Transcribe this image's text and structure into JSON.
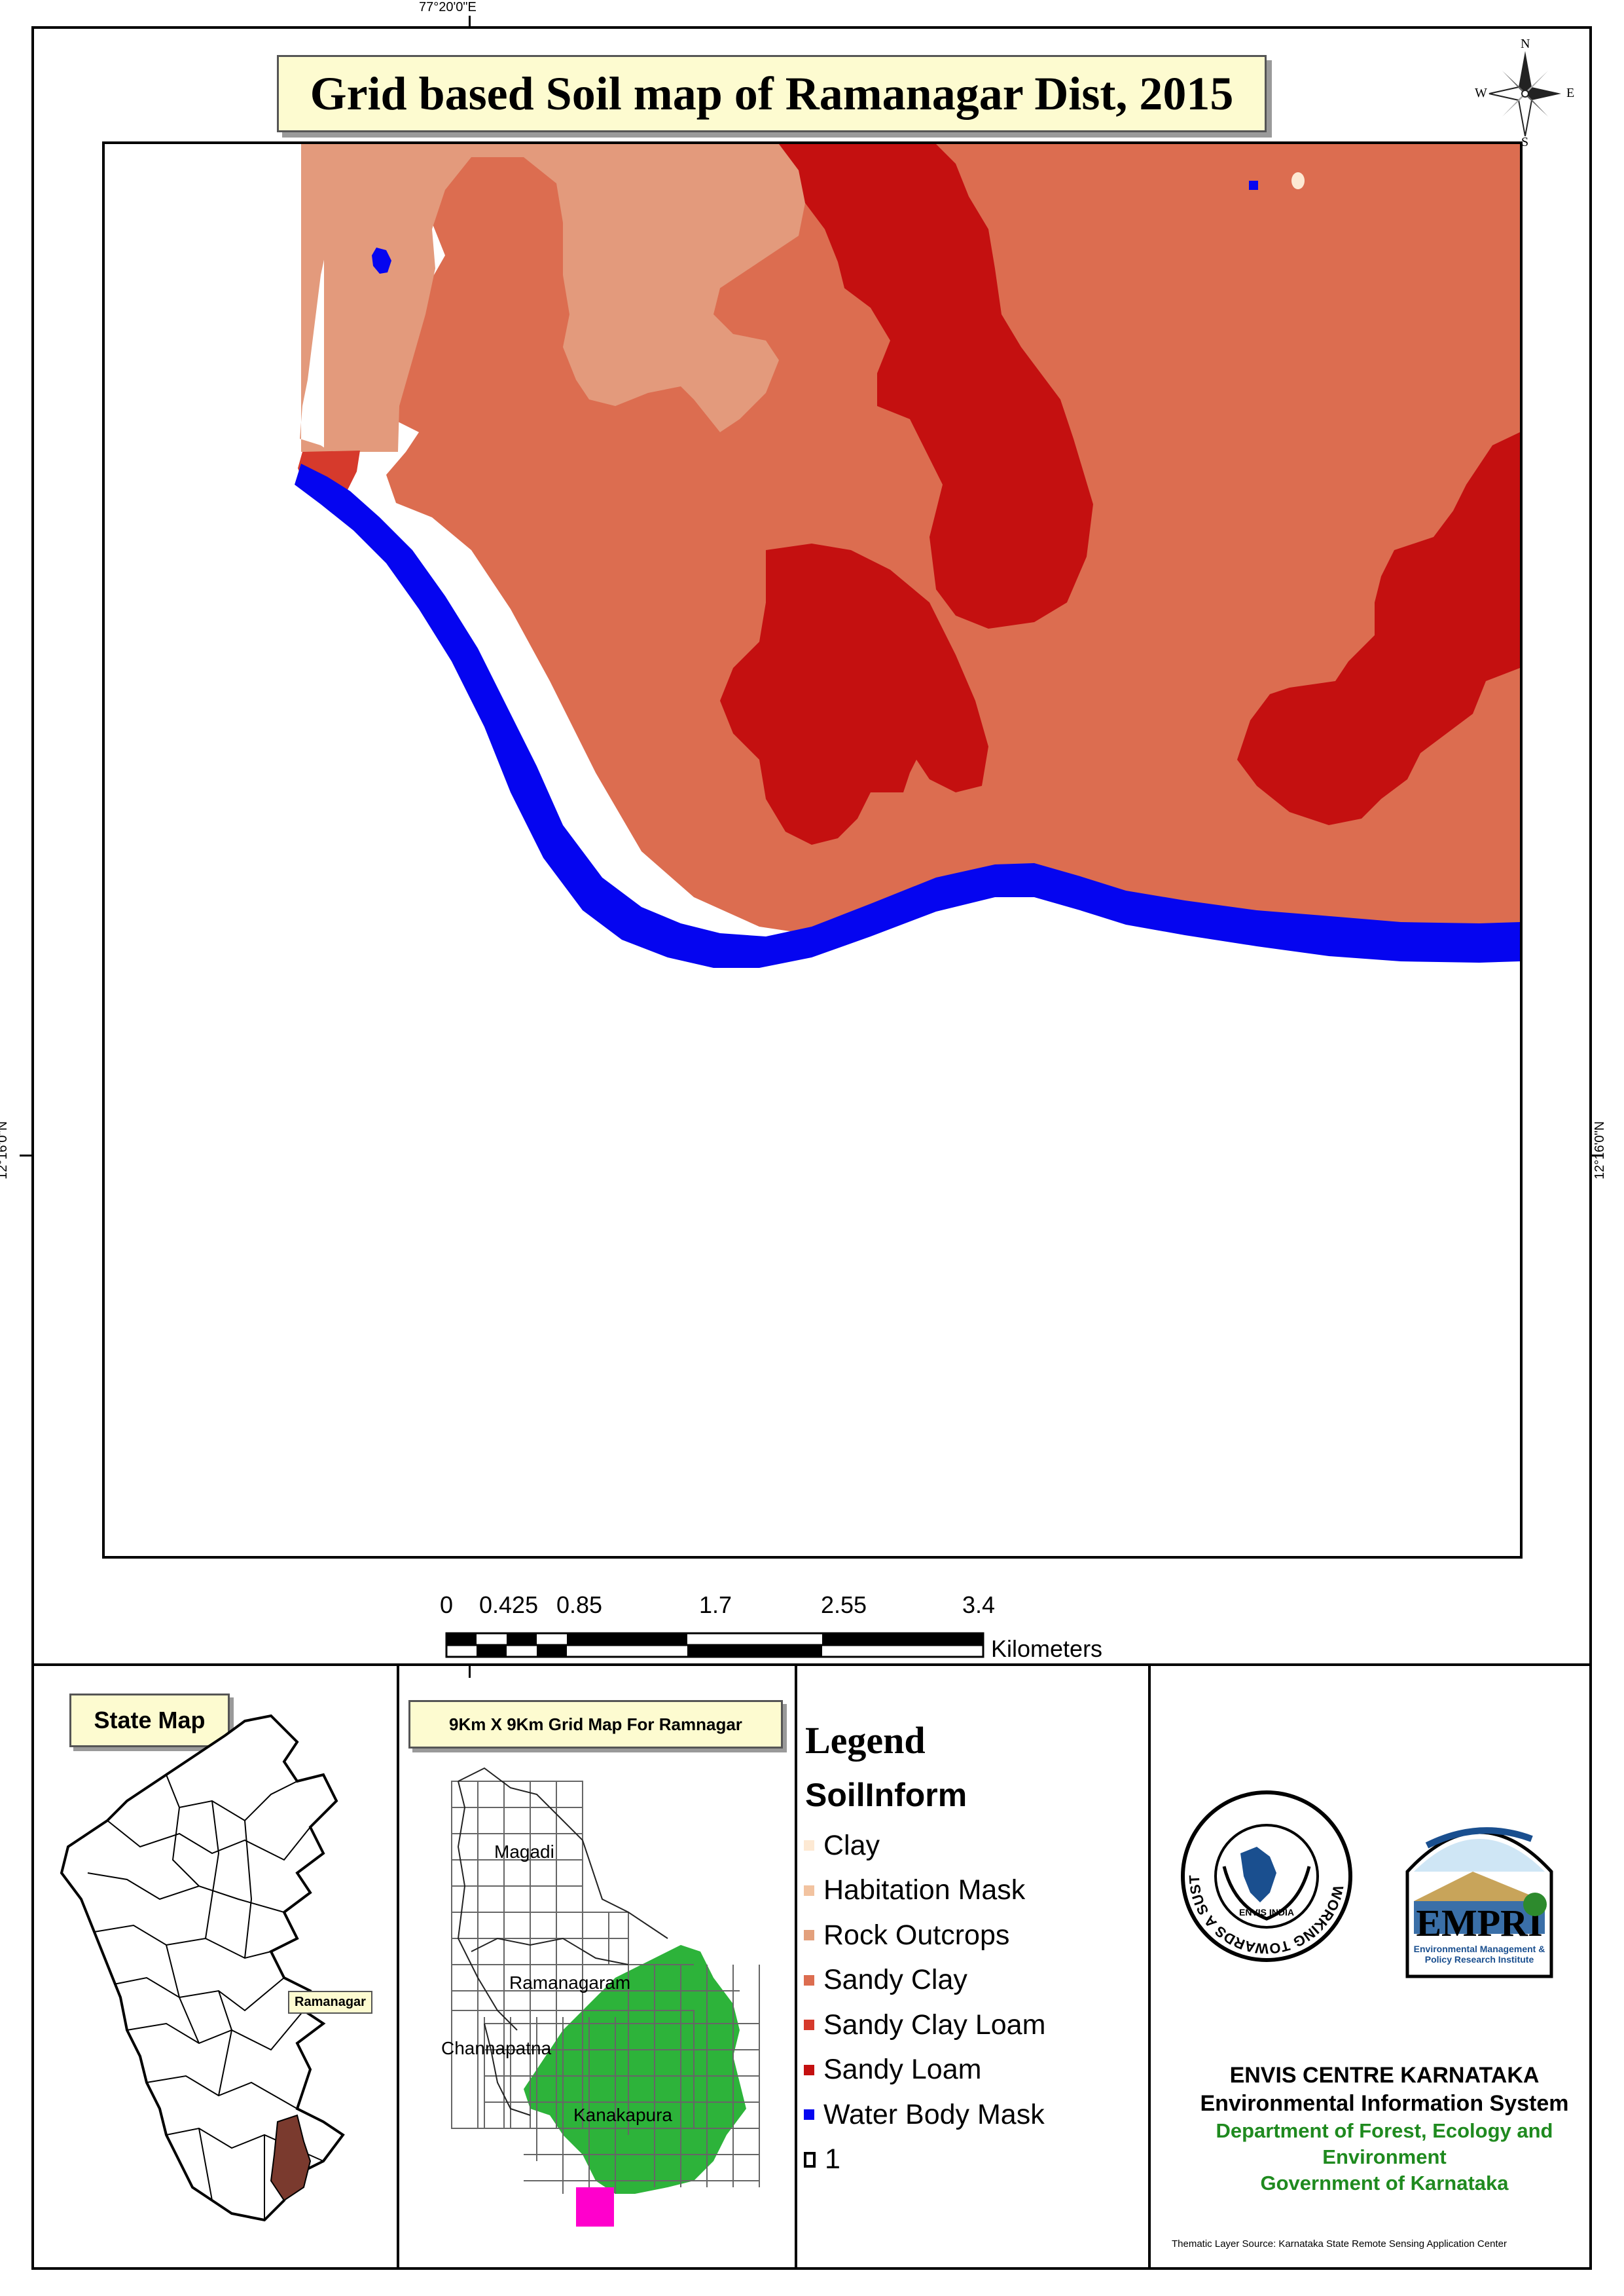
{
  "title": "Grid based Soil map of Ramanagar Dist, 2015",
  "coordinates": {
    "top_longitude": "77°20'0\"E",
    "left_latitude": "12°16'0\"N",
    "right_latitude": "12°16'0\"N"
  },
  "north_arrow": {
    "n": "N",
    "s": "S",
    "e": "E",
    "w": "W"
  },
  "scale_bar": {
    "ticks": [
      "0",
      "0.425",
      "0.85",
      "1.7",
      "2.55",
      "3.4"
    ],
    "units": "Kilometers"
  },
  "state_map": {
    "title": "State Map",
    "highlight_label": "Ramanagar",
    "highlight_color": "#7a3a2e"
  },
  "grid_map": {
    "title": "9Km X 9Km Grid Map For Ramnagar",
    "labels": [
      "Magadi",
      "Ramanagaram",
      "Channapatna",
      "Kanakapura"
    ],
    "kanakapura_color": "#2db33a",
    "selected_cell_color": "#ff00cc"
  },
  "legend": {
    "heading": "Legend",
    "subheading": "SoilInform",
    "items": [
      {
        "label": "Clay",
        "color": "#fde9d3"
      },
      {
        "label": "Habitation Mask",
        "color": "#f2c3a0"
      },
      {
        "label": "Rock Outcrops",
        "color": "#e3a07c"
      },
      {
        "label": "Sandy Clay",
        "color": "#dc6d50"
      },
      {
        "label": "Sandy Clay Loam",
        "color": "#d63a2c"
      },
      {
        "label": "Sandy Loam",
        "color": "#c41010"
      },
      {
        "label": "Water Body Mask",
        "color": "#0505f0"
      },
      {
        "label": "1",
        "color": "#ffffff"
      }
    ]
  },
  "map_colors": {
    "sandy_clay": "#dc6d50",
    "rock_outcrops": "#e39a7c",
    "sandy_loam": "#c41010",
    "sandy_clay_loam": "#d63a2c",
    "water": "#0505f0",
    "clay": "#fde9d3"
  },
  "logos": {
    "envis_ring_text": "WORKING TOWARDS A SUSTAINABLE ENVIRONMENT",
    "envis_center": "ENVIS INDIA",
    "emprl_text": "EMPRI",
    "emprl_caption": "Environmental Management & Policy Research Institute"
  },
  "organization": {
    "line1": "ENVIS CENTRE KARNATAKA",
    "line2": "Environmental Information System",
    "line3": "Department of Forest, Ecology and",
    "line4": "Environment",
    "line5": "Government of Karnataka",
    "green": "#1f8a1f"
  },
  "source_note": "Thematic Layer Source: Karnataka State Remote Sensing Application Center"
}
